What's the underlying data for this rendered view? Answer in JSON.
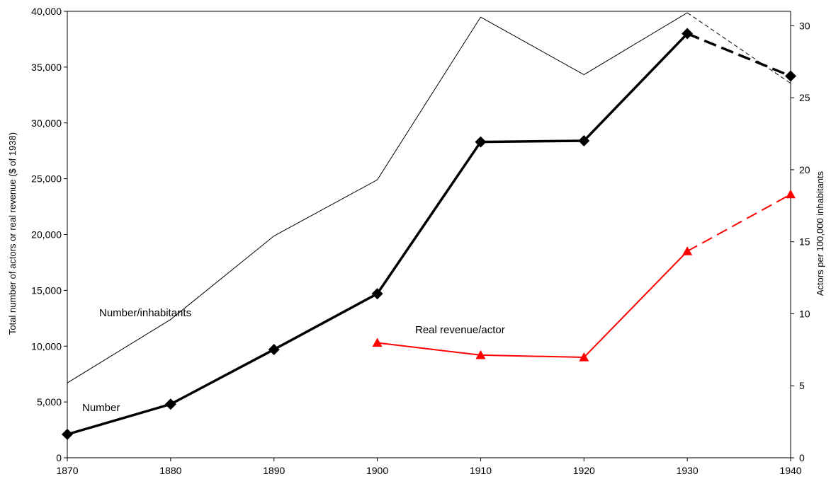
{
  "chart_data": {
    "type": "line",
    "title": "",
    "x": [
      1870,
      1880,
      1890,
      1900,
      1910,
      1920,
      1930,
      1940
    ],
    "xlim": [
      1870,
      1940
    ],
    "x_ticks": [
      "1870",
      "1880",
      "1890",
      "1900",
      "1910",
      "1920",
      "1930",
      "1940"
    ],
    "ylabel_left": "Total number of actors or real revenue ($ of 1938)",
    "ylim_left": [
      0,
      40000
    ],
    "y_ticks_left": [
      "0",
      "5,000",
      "10,000",
      "15,000",
      "20,000",
      "25,000",
      "30,000",
      "35,000",
      "40,000"
    ],
    "ylabel_right": "Actors per 100,000 inhabitants",
    "ylim_right": [
      0,
      31
    ],
    "y_ticks_right": [
      "0",
      "5",
      "10",
      "15",
      "20",
      "25",
      "30"
    ],
    "grid": false,
    "series": [
      {
        "name": "Number/inhabitants",
        "axis": "right",
        "color": "#000000",
        "style": "thin-line",
        "x": [
          1870,
          1880,
          1890,
          1900,
          1910,
          1920,
          1930,
          1940
        ],
        "values": [
          5.2,
          9.6,
          15.4,
          19.3,
          30.6,
          26.6,
          30.9,
          26.0
        ],
        "dashed_from": 1930
      },
      {
        "name": "Number",
        "axis": "left",
        "color": "#000000",
        "style": "thick-line-diamond",
        "x": [
          1870,
          1880,
          1890,
          1900,
          1910,
          1920,
          1930,
          1940
        ],
        "values": [
          2100,
          4800,
          9700,
          14700,
          28300,
          28400,
          38000,
          34200
        ],
        "dashed_from": 1930
      },
      {
        "name": "Real revenue/actor",
        "axis": "left",
        "color": "#ff0000",
        "style": "line-triangle",
        "x": [
          1900,
          1910,
          1920,
          1930,
          1940
        ],
        "values": [
          10300,
          9200,
          9000,
          18500,
          23600
        ],
        "dashed_from": 1930
      }
    ]
  }
}
